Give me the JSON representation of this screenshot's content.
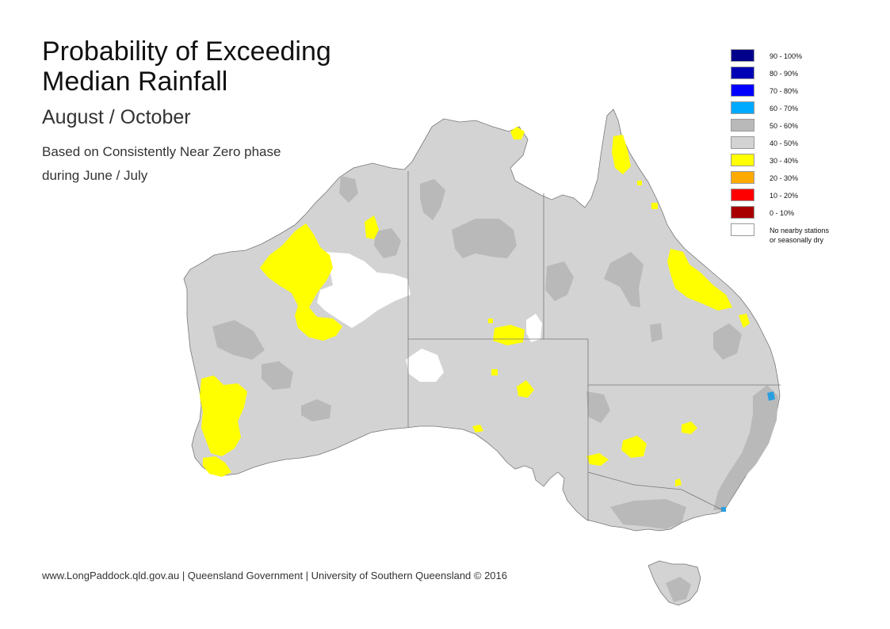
{
  "title_line1": "Probability of Exceeding",
  "title_line2": "Median Rainfall",
  "subtitle": "August / October",
  "desc_line1": "Based on Consistently Near Zero phase",
  "desc_line2": "during June / July",
  "footer": "www.LongPaddock.qld.gov.au | Queensland Government | University of Southern Queensland © 2016",
  "legend": [
    {
      "label": "90 - 100%",
      "color": "#00008b"
    },
    {
      "label": "80 - 90%",
      "color": "#0000b4"
    },
    {
      "label": "70 - 80%",
      "color": "#0000ff"
    },
    {
      "label": "60 - 70%",
      "color": "#00aaff"
    },
    {
      "label": "50 - 60%",
      "color": "#b9b9b9"
    },
    {
      "label": "40 - 50%",
      "color": "#d3d3d3"
    },
    {
      "label": "30 - 40%",
      "color": "#ffff00"
    },
    {
      "label": "20 - 30%",
      "color": "#ffaa00"
    },
    {
      "label": "10 - 20%",
      "color": "#ff0000"
    },
    {
      "label": "0 - 10%",
      "color": "#a80000"
    },
    {
      "label": "No nearby stations",
      "label2": "or seasonally dry",
      "color": "#ffffff"
    }
  ],
  "map_colors": {
    "base": "#d3d3d3",
    "darker": "#b9b9b9",
    "yellow": "#ffff00",
    "nodata": "#ffffff",
    "blue": "#2a9fe0",
    "border": "#777777"
  }
}
